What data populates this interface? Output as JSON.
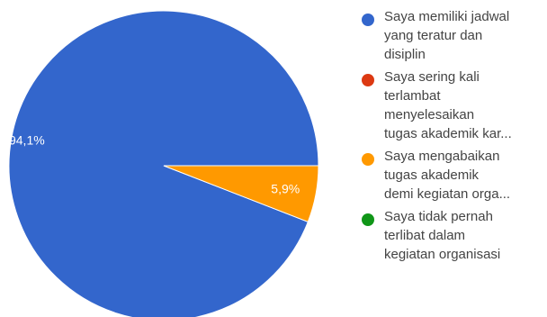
{
  "chart_data": {
    "type": "pie",
    "categories": [
      "Saya memiliki jadwal yang teratur dan disiplin",
      "Saya sering kali terlambat menyelesaikan tugas akademik kar...",
      "Saya mengabaikan tugas akademik demi kegiatan orga...",
      "Saya tidak pernah terlibat dalam kegiatan organisasi"
    ],
    "values": [
      94.1,
      0,
      5.9,
      0
    ],
    "slice_labels": [
      "94,1%",
      "",
      "5,9%",
      ""
    ],
    "colors": [
      "#3366cc",
      "#dc3912",
      "#ff9900",
      "#109618"
    ],
    "legend_position": "right",
    "title": ""
  },
  "legend": [
    {
      "lines": [
        "Saya memiliki jadwal",
        "yang teratur dan",
        "disiplin"
      ]
    },
    {
      "lines": [
        "Saya sering kali",
        "terlambat",
        "menyelesaikan",
        "tugas akademik kar..."
      ]
    },
    {
      "lines": [
        "Saya mengabaikan",
        "tugas akademik",
        "demi kegiatan orga..."
      ]
    },
    {
      "lines": [
        "Saya tidak pernah",
        "terlibat dalam",
        "kegiatan organisasi"
      ]
    }
  ]
}
